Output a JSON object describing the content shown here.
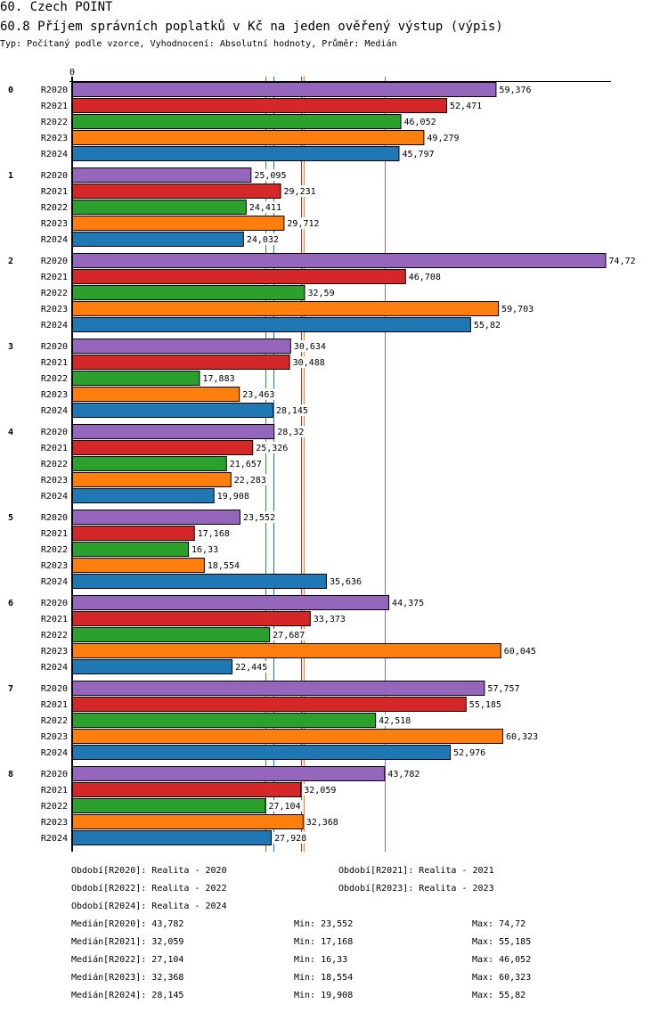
{
  "header": {
    "title": "60. Czech POINT",
    "subtitle": "60.8 Příjem správních poplatků v Kč na jeden ověřený výstup (výpis)",
    "meta": "Typ: Počítaný podle vzorce, Vyhodnocení: Absolutní hodnoty, Průměr: Medián"
  },
  "chart_data": {
    "type": "bar",
    "orientation": "horizontal",
    "title": "60.8 Příjem správních poplatků v Kč na jeden ověřený výstup (výpis)",
    "xlabel": "",
    "ylabel": "",
    "xlim": [
      0,
      75.4
    ],
    "x_tick_labels": [
      "0"
    ],
    "grid": false,
    "legend_position": "bottom",
    "categories": [
      "0",
      "1",
      "2",
      "3",
      "4",
      "5",
      "6",
      "7",
      "8"
    ],
    "series": [
      {
        "name": "R2020",
        "color": "#9467bd",
        "values": [
          59.376,
          25.095,
          74.72,
          30.634,
          28.32,
          23.552,
          44.375,
          57.757,
          43.782
        ],
        "labels": [
          "59,376",
          "25,095",
          "74,72",
          "30,634",
          "28,32",
          "23,552",
          "44,375",
          "57,757",
          "43,782"
        ]
      },
      {
        "name": "R2021",
        "color": "#d62728",
        "values": [
          52.471,
          29.231,
          46.708,
          30.488,
          25.326,
          17.168,
          33.373,
          55.185,
          32.059
        ],
        "labels": [
          "52,471",
          "29,231",
          "46,708",
          "30,488",
          "25,326",
          "17,168",
          "33,373",
          "55,185",
          "32,059"
        ]
      },
      {
        "name": "R2022",
        "color": "#2ca02c",
        "values": [
          46.052,
          24.411,
          32.59,
          17.883,
          21.657,
          16.33,
          27.687,
          42.518,
          27.104
        ],
        "labels": [
          "46,052",
          "24,411",
          "32,59",
          "17,883",
          "21,657",
          "16,33",
          "27,687",
          "42,518",
          "27,104"
        ]
      },
      {
        "name": "R2023",
        "color": "#ff7f0e",
        "values": [
          49.279,
          29.712,
          59.703,
          23.463,
          22.283,
          18.554,
          60.045,
          60.323,
          32.368
        ],
        "labels": [
          "49,279",
          "29,712",
          "59,703",
          "23,463",
          "22,283",
          "18,554",
          "60,045",
          "60,323",
          "32,368"
        ]
      },
      {
        "name": "R2024",
        "color": "#1f77b4",
        "values": [
          45.797,
          24.032,
          55.82,
          28.145,
          19.908,
          35.636,
          22.445,
          52.976,
          27.928
        ],
        "labels": [
          "45,797",
          "24,032",
          "55,82",
          "28,145",
          "19,908",
          "35,636",
          "22,445",
          "52,976",
          "27,928"
        ]
      }
    ],
    "median_lines": [
      {
        "series": "R2020",
        "value": 43.782,
        "color": "#9467bd"
      },
      {
        "series": "R2021",
        "value": 32.059,
        "color": "#d62728"
      },
      {
        "series": "R2022",
        "value": 27.104,
        "color": "#2ca02c"
      },
      {
        "series": "R2023",
        "value": 32.368,
        "color": "#ff7f0e"
      },
      {
        "series": "R2024",
        "value": 28.145,
        "color": "#1f77b4"
      }
    ]
  },
  "legend": {
    "periods": [
      "Období[R2020]: Realita - 2020",
      "Období[R2021]: Realita - 2021",
      "Období[R2022]: Realita - 2022",
      "Období[R2023]: Realita - 2023",
      "Období[R2024]: Realita - 2024"
    ],
    "stats": [
      {
        "median": "Medián[R2020]: 43,782",
        "min": "Min: 23,552",
        "max": "Max: 74,72"
      },
      {
        "median": "Medián[R2021]: 32,059",
        "min": "Min: 17,168",
        "max": "Max: 55,185"
      },
      {
        "median": "Medián[R2022]: 27,104",
        "min": "Min: 16,33",
        "max": "Max: 46,052"
      },
      {
        "median": "Medián[R2023]: 32,368",
        "min": "Min: 18,554",
        "max": "Max: 60,323"
      },
      {
        "median": "Medián[R2024]: 28,145",
        "min": "Min: 19,908",
        "max": "Max: 55,82"
      }
    ]
  }
}
